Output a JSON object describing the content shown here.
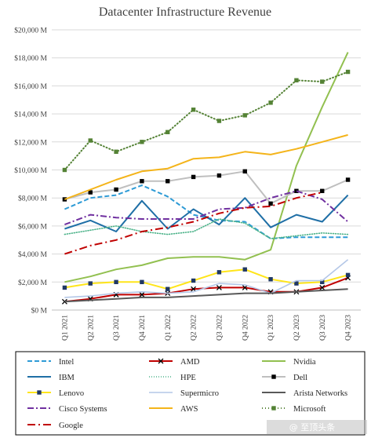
{
  "watermark": "@ 至顶头条",
  "chart_data": {
    "type": "line",
    "title": "Datacenter Infrastructure Revenue",
    "xlabel": "",
    "ylabel": "",
    "categories": [
      "Q1 2021",
      "Q2 2021",
      "Q3 2021",
      "Q4 2021",
      "Q1 2022",
      "Q2 2022",
      "Q3 2022",
      "Q4 2022",
      "Q1 2023",
      "Q2 2023",
      "Q3 2023",
      "Q4 2023"
    ],
    "ylim": [
      0,
      20000
    ],
    "ytick_values": [
      0,
      2000,
      4000,
      6000,
      8000,
      10000,
      12000,
      14000,
      16000,
      18000,
      20000
    ],
    "ytick_labels": [
      "$0 M",
      "$2,000 M",
      "$4,000 M",
      "$6,000 M",
      "$8,000 M",
      "$10,000 M",
      "$12,000 M",
      "$14,000 M",
      "$16,000 M",
      "$18,000 M",
      "$20,000 M"
    ],
    "grid": true,
    "legend_position": "bottom",
    "series": [
      {
        "name": "Intel",
        "color": "#2E9BD6",
        "dash": "6,3",
        "marker": "none",
        "width": 2,
        "values": [
          7200,
          8000,
          8200,
          8900,
          8100,
          6800,
          6400,
          6300,
          5100,
          5200,
          5200,
          5200
        ]
      },
      {
        "name": "AMD",
        "color": "#C00000",
        "dash": "",
        "marker": "x",
        "width": 2,
        "values": [
          600,
          800,
          1100,
          1100,
          1200,
          1500,
          1600,
          1600,
          1300,
          1300,
          1600,
          2300
        ]
      },
      {
        "name": "Nvidia",
        "color": "#92C050",
        "dash": "",
        "marker": "none",
        "width": 2,
        "values": [
          2000,
          2400,
          2900,
          3200,
          3700,
          3800,
          3800,
          3600,
          4300,
          10300,
          14500,
          18400
        ]
      },
      {
        "name": "IBM",
        "color": "#1F6FA6",
        "dash": "",
        "marker": "none",
        "width": 2,
        "values": [
          5800,
          6400,
          5600,
          7800,
          5800,
          7200,
          6100,
          8000,
          5900,
          6800,
          6300,
          8200
        ]
      },
      {
        "name": "HPE",
        "color": "#4DB38A",
        "dash": "1,2",
        "marker": "none",
        "width": 1.6,
        "values": [
          5400,
          5700,
          6000,
          5600,
          5400,
          5600,
          6500,
          6200,
          5100,
          5300,
          5500,
          5400
        ]
      },
      {
        "name": "Dell",
        "color": "#BFBFBF",
        "dash": "",
        "marker": "square-black",
        "width": 2,
        "values": [
          7900,
          8400,
          8600,
          9200,
          9200,
          9500,
          9600,
          9900,
          7600,
          8500,
          8500,
          9300
        ]
      },
      {
        "name": "Lenovo",
        "color": "#FFE51A",
        "dash": "",
        "marker": "square-navy",
        "width": 2,
        "values": [
          1600,
          1900,
          2000,
          2000,
          1500,
          2100,
          2700,
          2900,
          2200,
          1900,
          2000,
          2500
        ]
      },
      {
        "name": "Supermicro",
        "color": "#B4C7E7",
        "dash": "",
        "marker": "none",
        "width": 1.6,
        "values": [
          900,
          1000,
          1200,
          1300,
          1200,
          1300,
          1900,
          1800,
          1200,
          2100,
          2100,
          3600
        ]
      },
      {
        "name": "Arista Networks",
        "color": "#595959",
        "dash": "",
        "marker": "none",
        "width": 2,
        "values": [
          600,
          700,
          800,
          900,
          900,
          1000,
          1100,
          1200,
          1200,
          1300,
          1400,
          1500
        ]
      },
      {
        "name": "Cisco Systems",
        "color": "#7030A0",
        "dash": "8,3,2,3",
        "marker": "none",
        "width": 2,
        "values": [
          6100,
          6800,
          6600,
          6500,
          6500,
          6500,
          7200,
          7300,
          8000,
          8500,
          7900,
          6300
        ]
      },
      {
        "name": "AWS",
        "color": "#F4B41A",
        "dash": "",
        "marker": "none",
        "width": 2,
        "values": [
          7900,
          8600,
          9300,
          9900,
          10100,
          10800,
          10900,
          11300,
          11100,
          11500,
          12000,
          12500
        ]
      },
      {
        "name": "Microsoft",
        "color": "#548235",
        "dash": "1,3",
        "marker": "square-green",
        "width": 2,
        "values": [
          10000,
          12100,
          11300,
          12000,
          12700,
          14300,
          13500,
          13900,
          14800,
          16400,
          16300,
          17000
        ]
      },
      {
        "name": "Google",
        "color": "#C00000",
        "dash": "10,4,2,4",
        "marker": "none",
        "width": 2,
        "values": [
          4000,
          4600,
          5000,
          5600,
          5900,
          6300,
          6900,
          7300,
          7400,
          8000,
          8400,
          null
        ]
      }
    ]
  }
}
